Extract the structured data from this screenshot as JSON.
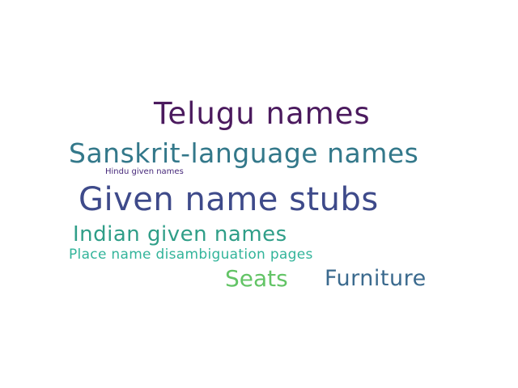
{
  "words": [
    {
      "text": "Telugu names",
      "color": "#4b1a5e"
    },
    {
      "text": "Sanskrit-language names",
      "color": "#33788a"
    },
    {
      "text": "Hindu given names",
      "color": "#46287a"
    },
    {
      "text": "Given name stubs",
      "color": "#3e4a8a"
    },
    {
      "text": "Indian given names",
      "color": "#2f9e88"
    },
    {
      "text": "Place name disambiguation pages",
      "color": "#32b49a"
    },
    {
      "text": "Seats",
      "color": "#63c466"
    },
    {
      "text": "Furniture",
      "color": "#3b6a8e"
    }
  ]
}
